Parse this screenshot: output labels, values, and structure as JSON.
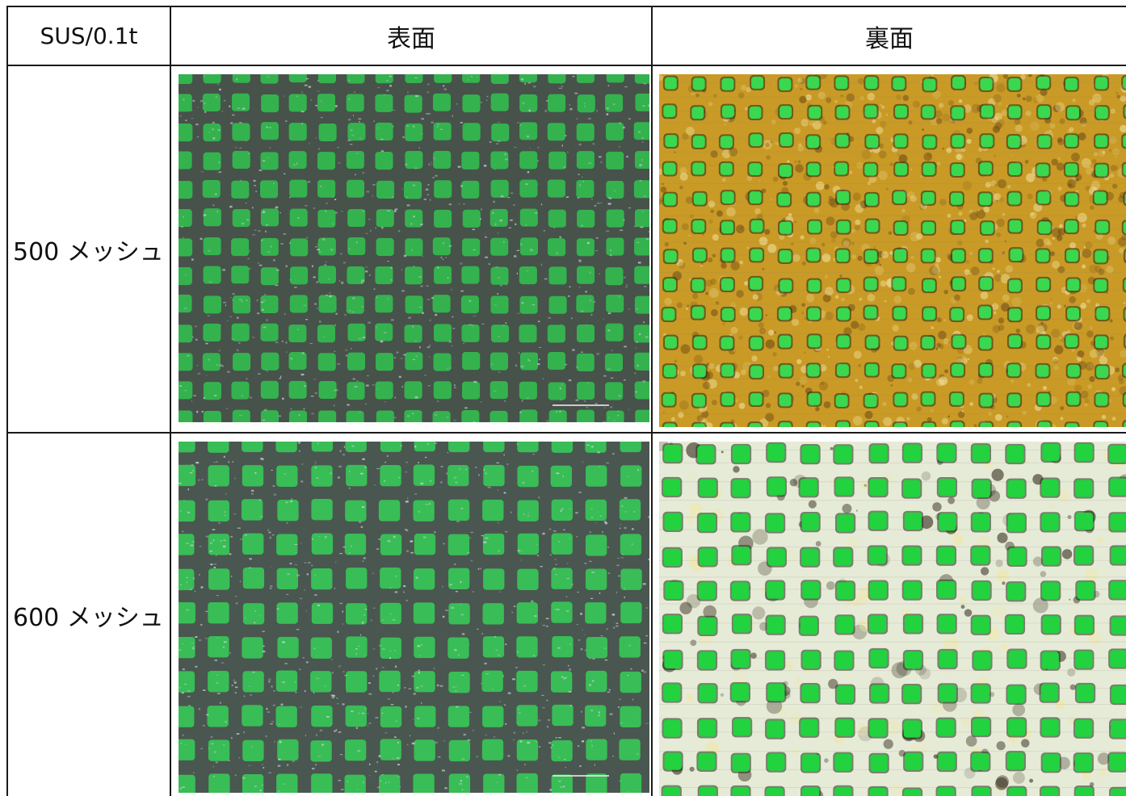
{
  "table": {
    "corner_label": "SUS/0.1t",
    "column_headers": [
      "表面",
      "裏面"
    ],
    "rows": [
      {
        "label": "500 メッシュ",
        "images": [
          {
            "kind": "mesh-front",
            "mesh_count": 500,
            "dark_frame": "#47524a",
            "opening": "#34b24e",
            "glint": "#c7ccd6"
          },
          {
            "kind": "mesh-back",
            "mesh_count": 500,
            "background": "#c99a25",
            "opening": "#39d84f",
            "rust": "#6e4b16"
          }
        ]
      },
      {
        "label": "600 メッシュ",
        "images": [
          {
            "kind": "mesh-front",
            "mesh_count": 600,
            "dark_frame": "#4a5650",
            "opening": "#39bd56",
            "glint": "#d2d7df"
          },
          {
            "kind": "mesh-back",
            "mesh_count": 600,
            "background": "#e6ebd7",
            "opening": "#22d23f",
            "rust": "#2d2415"
          }
        ]
      }
    ]
  },
  "colors": {
    "border": "#1a1a1a",
    "background": "#ffffff",
    "text": "#111111"
  }
}
